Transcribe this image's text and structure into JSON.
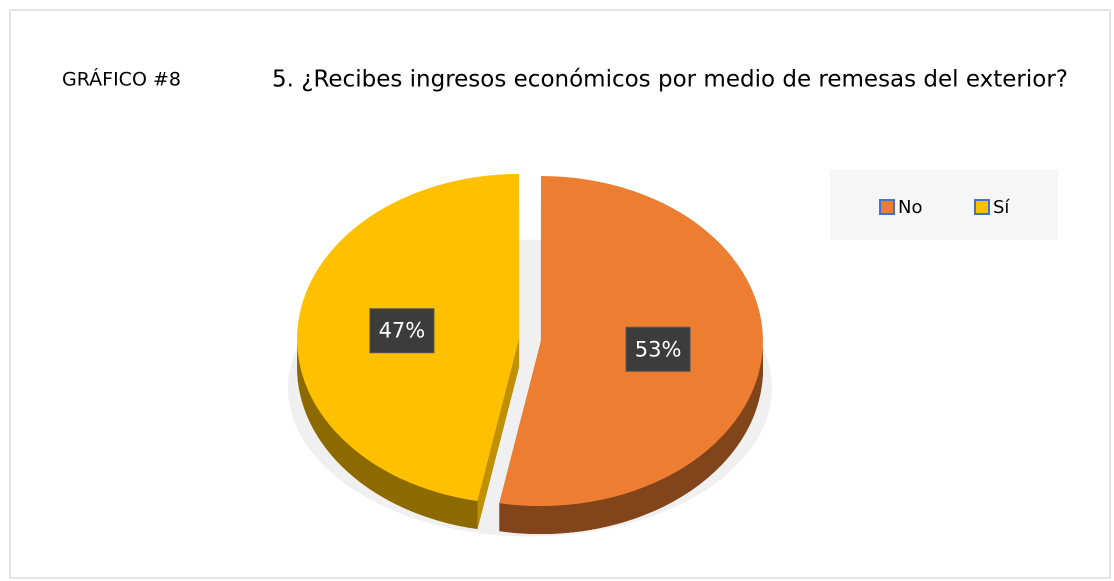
{
  "chart_data": {
    "type": "pie",
    "annotation": "GRÁFICO #8",
    "title": "5. ¿Recibes ingresos económicos por medio de remesas del exterior?",
    "categories": [
      "No",
      "Sí"
    ],
    "values": [
      53,
      47
    ],
    "value_labels": [
      "53%",
      "47%"
    ],
    "colors": [
      "#ED7D31",
      "#FFC000"
    ],
    "legend": "top-right"
  }
}
